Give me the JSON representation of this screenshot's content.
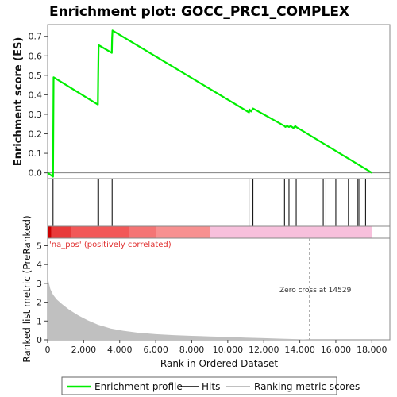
{
  "chart_data": {
    "type": "line",
    "title": "Enrichment plot: GOCC_PRC1_COMPLEX",
    "es_panel": {
      "ylabel": "Enrichment score (ES)",
      "ylim": [
        -0.03,
        0.76
      ],
      "yticks": [
        "0.0",
        "0.1",
        "0.2",
        "0.3",
        "0.4",
        "0.5",
        "0.6",
        "0.7"
      ],
      "series": [
        {
          "name": "Enrichment profile",
          "color": "#00ee00",
          "x": [
            0,
            300,
            330,
            2790,
            2810,
            2830,
            3560,
            3580,
            3600,
            11180,
            11200,
            11300,
            11400,
            11500,
            13150,
            13200,
            13300,
            13400,
            13500,
            13650,
            13750,
            13800,
            18000
          ],
          "y": [
            0.0,
            -0.02,
            0.49,
            0.35,
            0.5,
            0.655,
            0.615,
            0.69,
            0.73,
            0.31,
            0.325,
            0.315,
            0.33,
            0.325,
            0.24,
            0.235,
            0.24,
            0.235,
            0.24,
            0.23,
            0.24,
            0.235,
            0.0
          ]
        }
      ]
    },
    "hits": {
      "name": "Hits",
      "positions": [
        300,
        2790,
        2830,
        3580,
        11180,
        11400,
        13150,
        13400,
        13800,
        15300,
        15450,
        16000,
        16700,
        16950,
        17200,
        17280,
        17650
      ]
    },
    "ranking_bar": {
      "segments": [
        {
          "from": 0,
          "to": 200,
          "color": "#cc0000"
        },
        {
          "from": 200,
          "to": 1300,
          "color": "#e83a3a"
        },
        {
          "from": 1300,
          "to": 4500,
          "color": "#f25858"
        },
        {
          "from": 4500,
          "to": 6000,
          "color": "#f47575"
        },
        {
          "from": 6000,
          "to": 9000,
          "color": "#f79090"
        },
        {
          "from": 9000,
          "to": 18000,
          "color": "#f7c0dc"
        }
      ]
    },
    "metric_panel": {
      "ylabel": "Ranked list metric (PreRanked)",
      "ylim": [
        0,
        5.4
      ],
      "yticks": [
        "0",
        "1",
        "2",
        "3",
        "4",
        "5"
      ],
      "series": [
        {
          "name": "Ranking metric scores",
          "color": "#c0c0c0",
          "x": [
            0,
            50,
            150,
            300,
            500,
            800,
            1200,
            1700,
            2200,
            2800,
            3500,
            4200,
            5000,
            6000,
            7000,
            8000,
            9000,
            10000,
            11000,
            12000,
            13000,
            14000,
            14529
          ],
          "y": [
            3.6,
            3.1,
            2.7,
            2.4,
            2.15,
            1.9,
            1.6,
            1.3,
            1.05,
            0.8,
            0.6,
            0.48,
            0.38,
            0.3,
            0.25,
            0.21,
            0.18,
            0.15,
            0.12,
            0.09,
            0.06,
            0.03,
            0.0
          ]
        }
      ],
      "annotations": [
        "'na_pos' (positively correlated)",
        "Zero cross at 14529"
      ],
      "zero_cross": 14529
    },
    "xaxis": {
      "label": "Rank in Ordered Dataset",
      "xlim": [
        0,
        19000
      ],
      "ticks": [
        "0",
        "2,000",
        "4,000",
        "6,000",
        "8,000",
        "10,000",
        "12,000",
        "14,000",
        "16,000",
        "18,000"
      ]
    },
    "legend": {
      "position": "bottom",
      "items": [
        "Enrichment profile",
        "Hits",
        "Ranking metric scores"
      ]
    }
  }
}
